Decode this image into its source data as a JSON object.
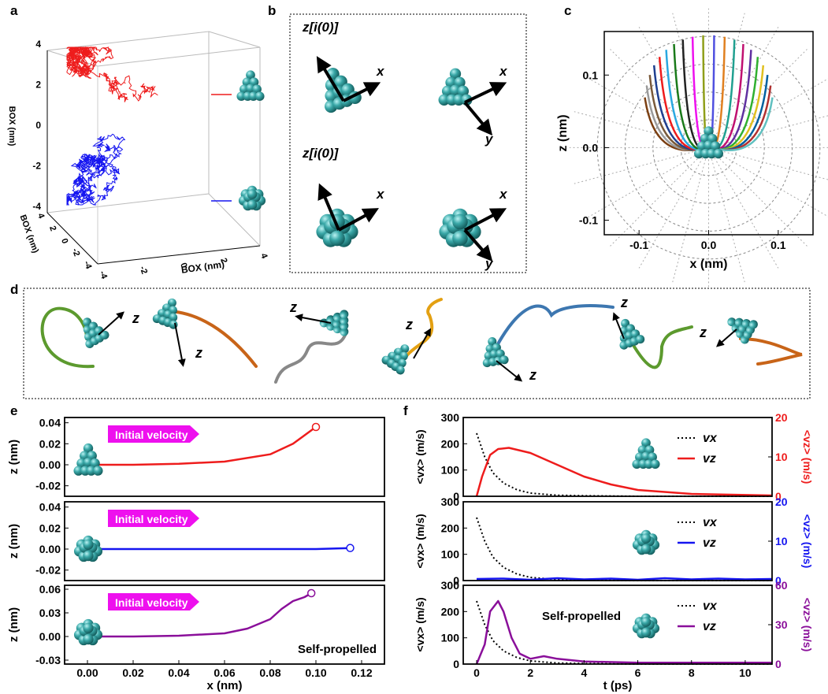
{
  "panel_labels": {
    "a": "a",
    "b": "b",
    "c": "c",
    "d": "d",
    "e": "e",
    "f": "f"
  },
  "colors": {
    "red": "#ee1c1c",
    "blue": "#1515f0",
    "purple": "#8a0f9a",
    "teal": "#2e9e9e",
    "magenta": "#ee10ee"
  },
  "panel_a": {
    "axis_label_vertical": "BOX (nm)",
    "axis_label_depth": "BOX (nm)",
    "axis_label_bottom": "BOX (nm)",
    "y_ticks": [
      "4",
      "2",
      "0",
      "-2",
      "-4"
    ],
    "depth_ticks": [
      "4",
      "2",
      "0",
      "-2",
      "-4"
    ],
    "bottom_ticks": [
      "-4",
      "-2",
      "0",
      "2",
      "4"
    ],
    "trajectories": [
      {
        "color": "red",
        "shape": "pyramid"
      },
      {
        "color": "blue",
        "shape": "sphere"
      }
    ]
  },
  "panel_b": {
    "z_label_top": "z[i(0)]",
    "z_label_bottom": "z[i(0)]",
    "x_label": "x",
    "y_label": "y"
  },
  "panel_d": {
    "axis_label": "z",
    "trajectory_colors": [
      "#5c9a2e",
      "#c86418",
      "#888888",
      "#e3a012",
      "#3d77b0",
      "#5c9a2e",
      "#c86418"
    ]
  },
  "chart_data": [
    {
      "id": "c",
      "type": "line",
      "xlabel": "x (nm)",
      "ylabel": "z (nm)",
      "xlim": [
        -0.15,
        0.15
      ],
      "ylim": [
        -0.12,
        0.16
      ],
      "x_ticks": [
        "-0.1",
        "0.0",
        "0.1"
      ],
      "y_ticks": [
        "0.1",
        "0.0",
        "-0.1"
      ],
      "grid": "polar",
      "series_count": 20
    },
    {
      "id": "e1",
      "type": "line",
      "xlabel": "",
      "ylabel": "z (nm)",
      "xlim": [
        -0.01,
        0.13
      ],
      "ylim": [
        -0.03,
        0.045
      ],
      "y_ticks": [
        "0.04",
        "0.02",
        "0.00",
        "-0.02"
      ],
      "annotation": "Initial velocity",
      "series": [
        {
          "color": "red",
          "x": [
            0,
            0.02,
            0.04,
            0.06,
            0.08,
            0.09,
            0.1
          ],
          "y": [
            0,
            0,
            0.001,
            0.003,
            0.01,
            0.02,
            0.036
          ]
        }
      ]
    },
    {
      "id": "e2",
      "type": "line",
      "xlabel": "",
      "ylabel": "z (nm)",
      "xlim": [
        -0.01,
        0.13
      ],
      "ylim": [
        -0.03,
        0.045
      ],
      "y_ticks": [
        "0.04",
        "0.02",
        "0.00",
        "-0.02"
      ],
      "annotation": "Initial velocity",
      "series": [
        {
          "color": "blue",
          "x": [
            0,
            0.05,
            0.1,
            0.115
          ],
          "y": [
            0,
            0,
            0,
            0.001
          ]
        }
      ]
    },
    {
      "id": "e3",
      "type": "line",
      "xlabel": "x (nm)",
      "ylabel": "z (nm)",
      "xlim": [
        -0.01,
        0.13
      ],
      "ylim": [
        -0.035,
        0.065
      ],
      "x_ticks": [
        "0.00",
        "0.02",
        "0.04",
        "0.06",
        "0.08",
        "0.10",
        "0.12"
      ],
      "y_ticks": [
        "0.06",
        "0.03",
        "0.00",
        "-0.03"
      ],
      "annotation": "Initial velocity",
      "text": "Self-propelled",
      "series": [
        {
          "color": "purple",
          "x": [
            0,
            0.02,
            0.04,
            0.06,
            0.07,
            0.08,
            0.085,
            0.09,
            0.095,
            0.098
          ],
          "y": [
            0,
            0,
            0.001,
            0.004,
            0.01,
            0.022,
            0.035,
            0.045,
            0.05,
            0.055
          ]
        }
      ]
    },
    {
      "id": "f1",
      "type": "line",
      "ylabel": "<vx> (m/s)",
      "ylabel_right": "<vz> (m/s)",
      "xlim": [
        -0.5,
        11
      ],
      "ylim": [
        0,
        300
      ],
      "ylim_right": [
        0,
        20
      ],
      "y_ticks": [
        "300",
        "200",
        "100",
        "0"
      ],
      "y_ticks_right": [
        "20",
        "10",
        "0"
      ],
      "legend": [
        "vx",
        "vz"
      ],
      "series": [
        {
          "name": "vx",
          "color": "black",
          "style": "dotted",
          "x": [
            0,
            0.3,
            0.6,
            1,
            1.5,
            2,
            3,
            4,
            6,
            11
          ],
          "y": [
            240,
            150,
            90,
            50,
            25,
            12,
            4,
            2,
            0,
            0
          ]
        },
        {
          "name": "vz",
          "color": "red",
          "axis": "right",
          "x": [
            0,
            0.2,
            0.5,
            0.8,
            1.2,
            2,
            3,
            4,
            5,
            6,
            8,
            11
          ],
          "y": [
            0,
            5,
            10.5,
            12,
            12.3,
            11,
            8,
            5,
            3,
            1.6,
            0.6,
            0.2
          ]
        }
      ]
    },
    {
      "id": "f2",
      "type": "line",
      "ylabel": "<vx> (m/s)",
      "ylabel_right": "<vz> (m/s)",
      "xlim": [
        -0.5,
        11
      ],
      "ylim": [
        0,
        300
      ],
      "ylim_right": [
        0,
        20
      ],
      "y_ticks": [
        "300",
        "200",
        "100",
        "0"
      ],
      "y_ticks_right": [
        "20",
        "10",
        "0"
      ],
      "legend": [
        "vx",
        "vz"
      ],
      "series": [
        {
          "name": "vx",
          "color": "black",
          "style": "dotted",
          "x": [
            0,
            0.3,
            0.6,
            1,
            1.5,
            2,
            3,
            4,
            6,
            11
          ],
          "y": [
            240,
            150,
            90,
            50,
            25,
            12,
            4,
            2,
            0,
            0
          ]
        },
        {
          "name": "vz",
          "color": "blue",
          "axis": "right",
          "x": [
            0,
            1,
            2,
            3,
            4,
            5,
            6,
            7,
            8,
            9,
            10,
            11
          ],
          "y": [
            0.4,
            0.5,
            0.2,
            0.6,
            0.3,
            0.5,
            0.2,
            0.6,
            0.3,
            0.5,
            0.3,
            0.4
          ]
        }
      ]
    },
    {
      "id": "f3",
      "type": "line",
      "xlabel": "t (ps)",
      "ylabel": "<vx> (m/s)",
      "ylabel_right": "<vz> (m/s)",
      "xlim": [
        -0.5,
        11
      ],
      "ylim": [
        0,
        300
      ],
      "ylim_right": [
        0,
        60
      ],
      "x_ticks": [
        "0",
        "2",
        "4",
        "6",
        "8",
        "10"
      ],
      "y_ticks": [
        "300",
        "200",
        "100",
        "0"
      ],
      "y_ticks_right": [
        "60",
        "30",
        "0"
      ],
      "legend": [
        "vx",
        "vz"
      ],
      "text": "Self-propelled",
      "series": [
        {
          "name": "vx",
          "color": "black",
          "style": "dotted",
          "x": [
            0,
            0.3,
            0.6,
            1,
            1.5,
            2,
            3,
            4,
            6,
            11
          ],
          "y": [
            240,
            150,
            90,
            50,
            25,
            12,
            4,
            2,
            0,
            0
          ]
        },
        {
          "name": "vz",
          "color": "purple",
          "axis": "right",
          "x": [
            0,
            0.3,
            0.5,
            0.8,
            1.0,
            1.3,
            1.6,
            2.0,
            2.5,
            3,
            4,
            6,
            11
          ],
          "y": [
            0,
            15,
            40,
            48,
            40,
            20,
            8,
            4,
            6,
            4,
            2,
            1,
            1
          ]
        }
      ]
    }
  ]
}
